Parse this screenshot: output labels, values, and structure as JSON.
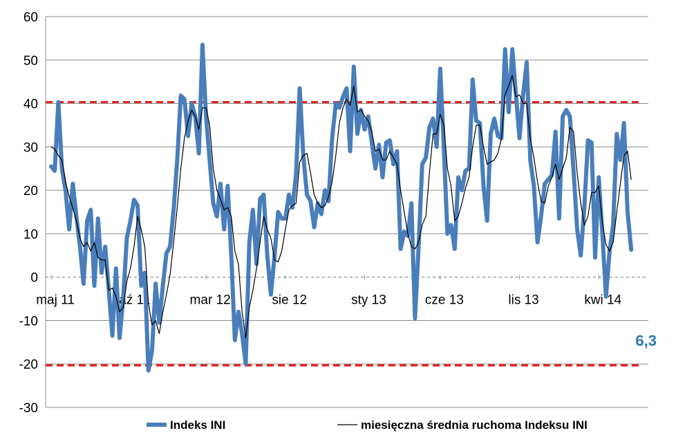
{
  "chart_data": {
    "type": "line",
    "ylim": [
      -30,
      60
    ],
    "y_ticks": [
      -30,
      -20,
      -10,
      0,
      10,
      20,
      30,
      40,
      50,
      60
    ],
    "grid": true,
    "x_ticks": [
      {
        "label": "maj 11",
        "x": 0
      },
      {
        "label": "paź 11",
        "x": 21
      },
      {
        "label": "mar 12",
        "x": 43
      },
      {
        "label": "sie 12",
        "x": 65
      },
      {
        "label": "sty 13",
        "x": 87
      },
      {
        "label": "cze 13",
        "x": 108
      },
      {
        "label": "lis 13",
        "x": 130
      },
      {
        "label": "kwi 14",
        "x": 152
      }
    ],
    "x_max": 165,
    "reference_lines": [
      {
        "value": 40.3,
        "color": "#e02020"
      },
      {
        "value": -20.3,
        "color": "#e02020"
      },
      {
        "value": 0,
        "color": "#808080"
      }
    ],
    "series": [
      {
        "name": "Indeks INI",
        "color": "#4a7ebb",
        "values": [
          [
            0,
            25.5
          ],
          [
            1,
            24.5
          ],
          [
            2,
            40.3
          ],
          [
            3,
            25
          ],
          [
            4,
            20
          ],
          [
            5,
            11
          ],
          [
            6,
            21.5
          ],
          [
            7,
            14
          ],
          [
            8,
            7
          ],
          [
            9,
            -1.5
          ],
          [
            10,
            13
          ],
          [
            11,
            15.5
          ],
          [
            12,
            -2
          ],
          [
            13,
            13.5
          ],
          [
            14,
            1
          ],
          [
            15,
            7
          ],
          [
            16,
            -3
          ],
          [
            17,
            -13.5
          ],
          [
            18,
            2
          ],
          [
            19,
            -14
          ],
          [
            20,
            -5
          ],
          [
            21,
            9
          ],
          [
            22,
            13
          ],
          [
            23,
            17.8
          ],
          [
            24,
            16.5
          ],
          [
            25,
            -2
          ],
          [
            26,
            1
          ],
          [
            27,
            -21.5
          ],
          [
            28,
            -17
          ],
          [
            29,
            -1.5
          ],
          [
            30,
            -10.5
          ],
          [
            31,
            -2
          ],
          [
            32,
            5.5
          ],
          [
            33,
            7
          ],
          [
            34,
            15.5
          ],
          [
            35,
            27
          ],
          [
            36,
            41.8
          ],
          [
            37,
            41
          ],
          [
            38,
            32.5
          ],
          [
            39,
            40
          ],
          [
            40,
            37
          ],
          [
            41,
            28.5
          ],
          [
            42,
            53.5
          ],
          [
            43,
            37
          ],
          [
            44,
            27
          ],
          [
            45,
            17
          ],
          [
            46,
            14
          ],
          [
            47,
            21.5
          ],
          [
            48,
            11
          ],
          [
            49,
            21
          ],
          [
            50,
            5
          ],
          [
            51,
            -14.5
          ],
          [
            52,
            -8
          ],
          [
            53,
            -13
          ],
          [
            54,
            -20
          ],
          [
            55,
            8
          ],
          [
            56,
            15.5
          ],
          [
            57,
            3
          ],
          [
            58,
            18
          ],
          [
            59,
            19
          ],
          [
            60,
            5
          ],
          [
            61,
            -4
          ],
          [
            62,
            5
          ],
          [
            63,
            15
          ],
          [
            64,
            13.5
          ],
          [
            65,
            13.5
          ],
          [
            66,
            19
          ],
          [
            67,
            16
          ],
          [
            68,
            24
          ],
          [
            69,
            43.5
          ],
          [
            70,
            28
          ],
          [
            71,
            19
          ],
          [
            72,
            17.5
          ],
          [
            73,
            11.5
          ],
          [
            74,
            17
          ],
          [
            75,
            14.5
          ],
          [
            76,
            20
          ],
          [
            77,
            17.5
          ],
          [
            78,
            32
          ],
          [
            79,
            40
          ],
          [
            80,
            39
          ],
          [
            81,
            41.5
          ],
          [
            82,
            43.5
          ],
          [
            83,
            29
          ],
          [
            84,
            48.5
          ],
          [
            85,
            33
          ],
          [
            86,
            38.5
          ],
          [
            87,
            34
          ],
          [
            88,
            37
          ],
          [
            89,
            31
          ],
          [
            90,
            25
          ],
          [
            91,
            30.5
          ],
          [
            92,
            23
          ],
          [
            93,
            31
          ],
          [
            94,
            31.5
          ],
          [
            95,
            26
          ],
          [
            96,
            29
          ],
          [
            97,
            6.5
          ],
          [
            98,
            10.5
          ],
          [
            99,
            9.5
          ],
          [
            100,
            17
          ],
          [
            101,
            -9.5
          ],
          [
            102,
            7
          ],
          [
            103,
            26
          ],
          [
            104,
            27.5
          ],
          [
            105,
            34.5
          ],
          [
            106,
            36.5
          ],
          [
            107,
            30
          ],
          [
            108,
            48
          ],
          [
            109,
            30
          ],
          [
            110,
            10
          ],
          [
            111,
            12
          ],
          [
            112,
            6.5
          ],
          [
            113,
            23
          ],
          [
            114,
            20
          ],
          [
            115,
            24.5
          ],
          [
            116,
            25
          ],
          [
            117,
            45.5
          ],
          [
            118,
            36
          ],
          [
            119,
            35.5
          ],
          [
            120,
            21
          ],
          [
            121,
            13
          ],
          [
            122,
            33
          ],
          [
            123,
            36.5
          ],
          [
            124,
            32.5
          ],
          [
            125,
            32
          ],
          [
            126,
            52.5
          ],
          [
            127,
            38
          ],
          [
            128,
            52.5
          ],
          [
            129,
            42
          ],
          [
            130,
            32
          ],
          [
            131,
            42
          ],
          [
            132,
            49.5
          ],
          [
            133,
            27
          ],
          [
            134,
            21
          ],
          [
            135,
            8
          ],
          [
            136,
            14
          ],
          [
            137,
            21.5
          ],
          [
            138,
            22.5
          ],
          [
            139,
            23.5
          ],
          [
            140,
            33.5
          ],
          [
            141,
            13.5
          ],
          [
            142,
            37
          ],
          [
            143,
            38.5
          ],
          [
            144,
            37
          ],
          [
            145,
            24.5
          ],
          [
            146,
            11
          ],
          [
            147,
            5
          ],
          [
            148,
            16
          ],
          [
            149,
            31.5
          ],
          [
            150,
            31
          ],
          [
            151,
            4.5
          ],
          [
            152,
            23
          ],
          [
            153,
            10
          ],
          [
            154,
            -4.5
          ],
          [
            155,
            6
          ],
          [
            156,
            12
          ],
          [
            157,
            33
          ],
          [
            158,
            27
          ],
          [
            159,
            35.5
          ],
          [
            160,
            15
          ],
          [
            161,
            6.3
          ]
        ]
      },
      {
        "name": "miesięczna średnia ruchoma Indeksu INI",
        "color": "#000000",
        "values": [
          [
            0,
            30
          ],
          [
            1,
            29.5
          ],
          [
            2,
            28
          ],
          [
            3,
            27
          ],
          [
            4,
            22
          ],
          [
            5,
            18.5
          ],
          [
            6,
            16
          ],
          [
            7,
            13
          ],
          [
            8,
            9
          ],
          [
            9,
            7
          ],
          [
            10,
            8
          ],
          [
            11,
            6
          ],
          [
            12,
            8
          ],
          [
            13,
            4.5
          ],
          [
            14,
            4
          ],
          [
            15,
            4
          ],
          [
            16,
            -3
          ],
          [
            17,
            -2.5
          ],
          [
            18,
            -4.5
          ],
          [
            19,
            -8
          ],
          [
            20,
            -7
          ],
          [
            21,
            -1
          ],
          [
            22,
            2
          ],
          [
            23,
            7
          ],
          [
            24,
            14
          ],
          [
            25,
            11
          ],
          [
            26,
            7
          ],
          [
            27,
            -6
          ],
          [
            28,
            -11
          ],
          [
            29,
            -10
          ],
          [
            30,
            -13
          ],
          [
            31,
            -8
          ],
          [
            32,
            -4
          ],
          [
            33,
            0.5
          ],
          [
            34,
            8
          ],
          [
            35,
            16
          ],
          [
            36,
            25
          ],
          [
            37,
            32
          ],
          [
            38,
            36
          ],
          [
            39,
            38.5
          ],
          [
            40,
            37
          ],
          [
            41,
            34
          ],
          [
            42,
            39
          ],
          [
            43,
            39
          ],
          [
            44,
            35
          ],
          [
            45,
            25
          ],
          [
            46,
            20
          ],
          [
            47,
            18
          ],
          [
            48,
            15.5
          ],
          [
            49,
            16
          ],
          [
            50,
            14
          ],
          [
            51,
            6
          ],
          [
            52,
            3
          ],
          [
            53,
            -8
          ],
          [
            54,
            -14
          ],
          [
            55,
            -7
          ],
          [
            56,
            -3
          ],
          [
            57,
            2
          ],
          [
            58,
            8
          ],
          [
            59,
            14
          ],
          [
            60,
            11
          ],
          [
            61,
            9
          ],
          [
            62,
            4
          ],
          [
            63,
            3.5
          ],
          [
            64,
            6
          ],
          [
            65,
            11
          ],
          [
            66,
            15.5
          ],
          [
            67,
            16.5
          ],
          [
            68,
            17
          ],
          [
            69,
            26.5
          ],
          [
            70,
            28
          ],
          [
            71,
            28.5
          ],
          [
            72,
            24
          ],
          [
            73,
            19
          ],
          [
            74,
            17
          ],
          [
            75,
            16
          ],
          [
            76,
            16.5
          ],
          [
            77,
            18.5
          ],
          [
            78,
            22
          ],
          [
            79,
            28
          ],
          [
            80,
            35.5
          ],
          [
            81,
            39
          ],
          [
            82,
            41
          ],
          [
            83,
            39.5
          ],
          [
            84,
            44
          ],
          [
            85,
            38
          ],
          [
            86,
            38.5
          ],
          [
            87,
            37
          ],
          [
            88,
            36
          ],
          [
            89,
            33.5
          ],
          [
            90,
            29
          ],
          [
            91,
            29.5
          ],
          [
            92,
            27
          ],
          [
            93,
            27
          ],
          [
            94,
            29
          ],
          [
            95,
            27.5
          ],
          [
            96,
            26
          ],
          [
            97,
            20
          ],
          [
            98,
            15
          ],
          [
            99,
            10
          ],
          [
            100,
            7
          ],
          [
            101,
            6.5
          ],
          [
            102,
            8
          ],
          [
            103,
            12
          ],
          [
            104,
            14
          ],
          [
            105,
            24
          ],
          [
            106,
            33
          ],
          [
            107,
            33
          ],
          [
            108,
            37.5
          ],
          [
            109,
            35
          ],
          [
            110,
            25
          ],
          [
            111,
            21
          ],
          [
            112,
            13
          ],
          [
            113,
            14
          ],
          [
            114,
            17
          ],
          [
            115,
            20.5
          ],
          [
            116,
            23
          ],
          [
            117,
            30
          ],
          [
            118,
            35
          ],
          [
            119,
            35
          ],
          [
            120,
            30
          ],
          [
            121,
            26
          ],
          [
            122,
            26.5
          ],
          [
            123,
            27
          ],
          [
            124,
            28.5
          ],
          [
            125,
            32
          ],
          [
            126,
            42
          ],
          [
            127,
            44
          ],
          [
            128,
            46.5
          ],
          [
            129,
            41.5
          ],
          [
            130,
            42
          ],
          [
            131,
            40
          ],
          [
            132,
            40
          ],
          [
            133,
            32
          ],
          [
            134,
            27.5
          ],
          [
            135,
            22
          ],
          [
            136,
            17.5
          ],
          [
            137,
            17
          ],
          [
            138,
            21
          ],
          [
            139,
            23
          ],
          [
            140,
            26
          ],
          [
            141,
            22.5
          ],
          [
            142,
            25
          ],
          [
            143,
            27.5
          ],
          [
            144,
            34.5
          ],
          [
            145,
            33.5
          ],
          [
            146,
            24
          ],
          [
            147,
            17
          ],
          [
            148,
            12
          ],
          [
            149,
            14
          ],
          [
            150,
            19.5
          ],
          [
            151,
            19.5
          ],
          [
            152,
            21
          ],
          [
            153,
            12.5
          ],
          [
            154,
            7.5
          ],
          [
            155,
            6
          ],
          [
            156,
            8
          ],
          [
            157,
            15
          ],
          [
            158,
            21.5
          ],
          [
            159,
            28
          ],
          [
            160,
            29
          ],
          [
            161,
            22.5
          ]
        ]
      }
    ],
    "annotations": [
      {
        "text": "6,3",
        "color": "#2e75b6",
        "x": 161,
        "y": -14.5
      }
    ],
    "legend_position": "bottom"
  }
}
